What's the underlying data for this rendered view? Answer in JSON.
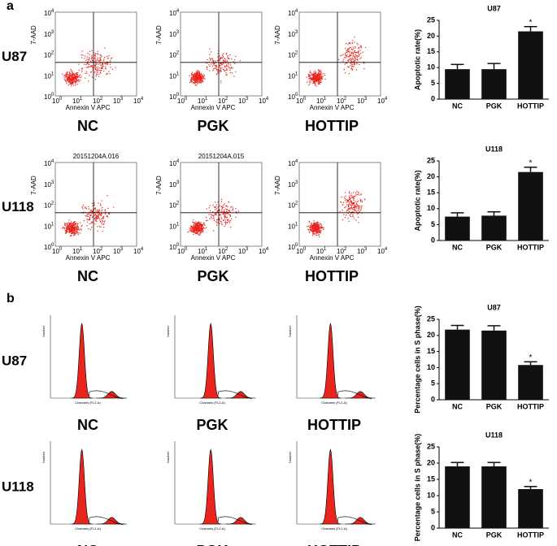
{
  "panel_labels": [
    "a",
    "b"
  ],
  "flow": {
    "rows": [
      "U87",
      "U118"
    ],
    "columns": [
      "NC",
      "PGK",
      "HOTTIP"
    ],
    "x_label": "Annexin V APC",
    "y_label": "7-AAD",
    "tick_base": "10",
    "tick_exponents": [
      "0",
      "1",
      "2",
      "3",
      "4"
    ],
    "sample_ids": [
      "20151204A.016",
      "20151204A.015"
    ]
  },
  "cell_cycle": {
    "rows": [
      "U87",
      "U118"
    ],
    "columns": [
      "NC",
      "PGK",
      "HOTTIP"
    ],
    "x_label": "Channels (FL2-A)",
    "y_label": "Number"
  },
  "chart_data": [
    {
      "type": "bar",
      "title": "U87",
      "y_label": "Apoptotic rate(%)",
      "categories": [
        "NC",
        "PGK",
        "HOTTIP"
      ],
      "values": [
        9.5,
        9.5,
        21.5
      ],
      "errors": [
        1.5,
        1.8,
        1.5
      ],
      "color": "#111111",
      "ylim": [
        0,
        25
      ],
      "yticks": [
        0,
        5,
        10,
        15,
        20,
        25
      ],
      "annotation": {
        "category": "HOTTIP",
        "text": "*"
      }
    },
    {
      "type": "bar",
      "title": "U118",
      "y_label": "Apoptotic rate(%)",
      "categories": [
        "NC",
        "PGK",
        "HOTTIP"
      ],
      "values": [
        7.5,
        7.8,
        21.5
      ],
      "errors": [
        1.2,
        1.2,
        1.5
      ],
      "color": "#111111",
      "ylim": [
        0,
        25
      ],
      "yticks": [
        0,
        5,
        10,
        15,
        20,
        25
      ],
      "annotation": {
        "category": "HOTTIP",
        "text": "*"
      }
    },
    {
      "type": "bar",
      "title": "U87",
      "y_label": "Percentage cells in S phase(%)",
      "categories": [
        "NC",
        "PGK",
        "HOTTIP"
      ],
      "values": [
        21.8,
        21.5,
        10.8
      ],
      "errors": [
        1.3,
        1.5,
        1.0
      ],
      "color": "#111111",
      "ylim": [
        0,
        25
      ],
      "yticks": [
        0,
        5,
        10,
        15,
        20,
        25
      ],
      "annotation": {
        "category": "HOTTIP",
        "text": "*"
      }
    },
    {
      "type": "bar",
      "title": "U118",
      "y_label": "Percentage cells in S phase(%)",
      "categories": [
        "NC",
        "PGK",
        "HOTTIP"
      ],
      "values": [
        19,
        19,
        12
      ],
      "errors": [
        1.2,
        1.2,
        0.8
      ],
      "color": "#111111",
      "ylim": [
        0,
        25
      ],
      "yticks": [
        0,
        5,
        10,
        15,
        20,
        25
      ],
      "annotation": {
        "category": "HOTTIP",
        "text": "*"
      }
    }
  ]
}
